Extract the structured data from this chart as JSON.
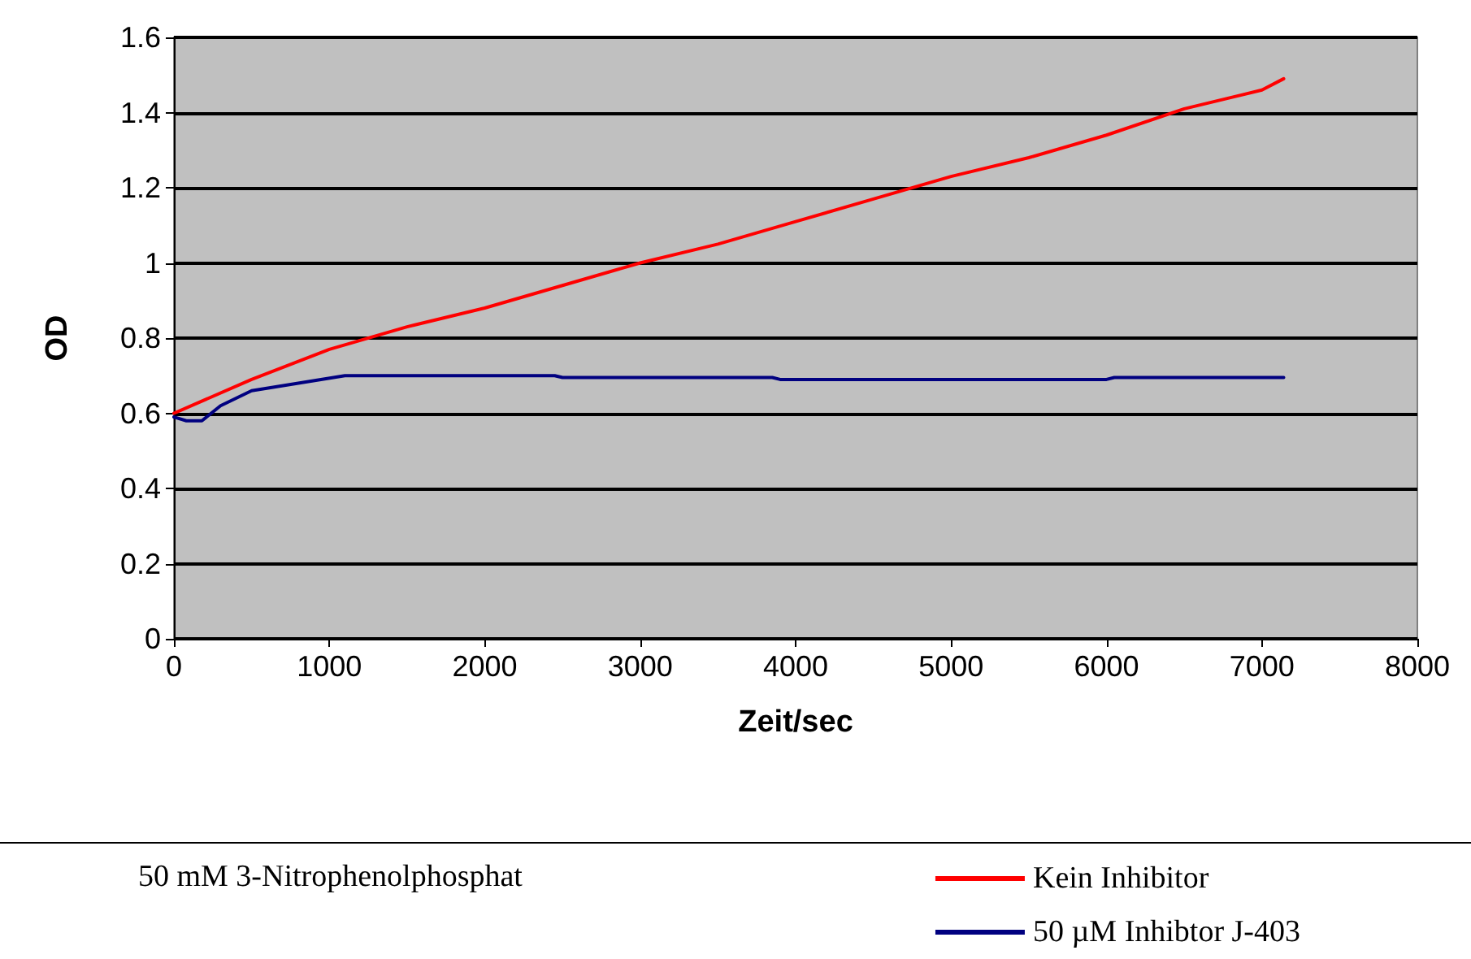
{
  "chart_data": {
    "type": "line",
    "xlabel": "Zeit/sec",
    "ylabel": "OD",
    "annotations": [
      "50 mM 3-Nitrophenolphosphat"
    ],
    "xlim": [
      0,
      8000
    ],
    "xticks": [
      0,
      1000,
      2000,
      3000,
      4000,
      5000,
      6000,
      7000,
      8000
    ],
    "ylim": [
      0,
      1.6
    ],
    "yticks": [
      0,
      0.2,
      0.4,
      0.6,
      0.8,
      1,
      1.2,
      1.4,
      1.6
    ],
    "grid": "y",
    "legend": "bottom right",
    "marker": "none",
    "line_style": "solid",
    "series": [
      {
        "name": "Kein Inhibitor",
        "color": "#ff0000",
        "x": [
          0,
          500,
          1000,
          1500,
          2000,
          2500,
          3000,
          3500,
          4000,
          4500,
          5000,
          5500,
          6000,
          6500,
          7000,
          7140
        ],
        "values": [
          0.6,
          0.69,
          0.77,
          0.83,
          0.88,
          0.94,
          1.0,
          1.05,
          1.11,
          1.17,
          1.23,
          1.28,
          1.34,
          1.41,
          1.46,
          1.49
        ]
      },
      {
        "name": "50 µM Inhibtor J-403",
        "color": "#000080",
        "x": [
          0,
          80,
          180,
          300,
          500,
          800,
          1100,
          2450,
          2500,
          3850,
          3900,
          6000,
          6050,
          7140
        ],
        "values": [
          0.59,
          0.58,
          0.58,
          0.62,
          0.66,
          0.68,
          0.7,
          0.7,
          0.695,
          0.695,
          0.69,
          0.69,
          0.695,
          0.695
        ]
      }
    ]
  }
}
